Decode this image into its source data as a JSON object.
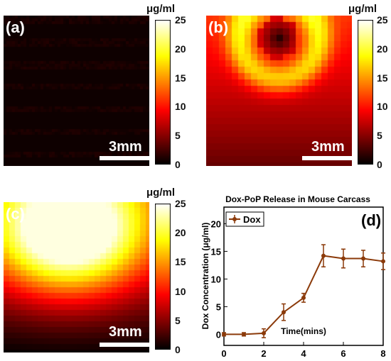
{
  "colors": {
    "map_bg": "#000000",
    "plot_line": "#8b3a0a",
    "plot_marker": "#8b3a0a"
  },
  "colormap": "hot",
  "colorbar": {
    "unit": "μg/ml",
    "ticks": [
      "25",
      "20",
      "15",
      "10",
      "5",
      "0"
    ],
    "range": [
      0,
      25
    ]
  },
  "panels": {
    "a": {
      "label": "(a)",
      "scale": "3mm"
    },
    "b": {
      "label": "(b)",
      "scale": "3mm"
    },
    "c": {
      "label": "(c)",
      "scale": "3mm"
    },
    "d": {
      "label": "(d)"
    }
  },
  "chart_data": {
    "type": "line",
    "title": "Dox-PoP Release in Mouse Carcass",
    "xlabel": "Time(mins)",
    "ylabel": "Dox Concentration (μg/ml)",
    "xlim": [
      0,
      8
    ],
    "ylim": [
      -2,
      23
    ],
    "xticks": [
      "0",
      "2",
      "4",
      "6",
      "8"
    ],
    "yticks": [
      "0",
      "5",
      "10",
      "15",
      "20"
    ],
    "legend": {
      "label": "Dox",
      "placement": "top-left"
    },
    "series": [
      {
        "name": "Dox",
        "x": [
          0,
          1,
          2,
          3,
          4,
          5,
          6,
          7,
          8
        ],
        "y": [
          0,
          0,
          0.2,
          4,
          6.6,
          14.2,
          13.7,
          13.7,
          13.2
        ],
        "err": [
          0.3,
          0.3,
          0.8,
          1.5,
          0.8,
          2.0,
          1.7,
          1.5,
          1.5
        ]
      }
    ]
  }
}
